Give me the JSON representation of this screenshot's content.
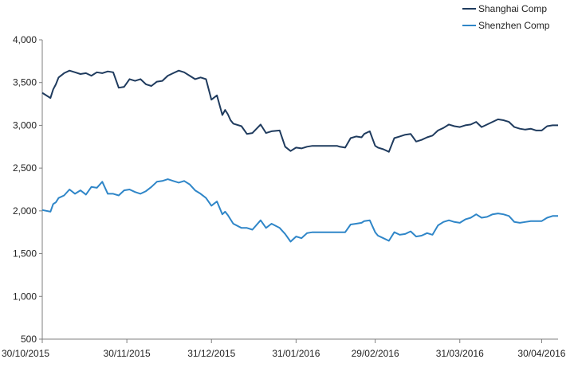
{
  "chart_data": {
    "type": "line",
    "title": "",
    "xlabel": "",
    "ylabel": "",
    "ylim": [
      500,
      4000
    ],
    "yticks": [
      500,
      1000,
      1500,
      2000,
      2500,
      3000,
      3500,
      4000
    ],
    "ytick_labels": [
      "500",
      "1,000",
      "1,500",
      "2,000",
      "2,500",
      "3,000",
      "3,500",
      "4,000"
    ],
    "xlim": [
      "2015-10-30",
      "2016-05-06"
    ],
    "xticks": [
      "2015-10-30",
      "2015-11-30",
      "2015-12-31",
      "2016-01-31",
      "2016-02-29",
      "2016-03-31",
      "2016-04-30"
    ],
    "xtick_labels": [
      "30/10/2015",
      "30/11/2015",
      "31/12/2015",
      "31/01/2016",
      "29/02/2016",
      "31/03/2016",
      "30/04/2016"
    ],
    "grid": false,
    "legend": "top-right",
    "colors": {
      "axis": "#7f7f7f",
      "Shanghai Comp": "#1f3b5e",
      "Shenzhen Comp": "#2f86c8"
    },
    "series": [
      {
        "name": "Shanghai Comp",
        "x": [
          "2015-10-30",
          "2015-11-02",
          "2015-11-03",
          "2015-11-04",
          "2015-11-05",
          "2015-11-07",
          "2015-11-09",
          "2015-11-11",
          "2015-11-13",
          "2015-11-15",
          "2015-11-17",
          "2015-11-19",
          "2015-11-21",
          "2015-11-23",
          "2015-11-25",
          "2015-11-27",
          "2015-11-29",
          "2015-12-01",
          "2015-12-03",
          "2015-12-05",
          "2015-12-07",
          "2015-12-09",
          "2015-12-11",
          "2015-12-13",
          "2015-12-15",
          "2015-12-17",
          "2015-12-19",
          "2015-12-21",
          "2015-12-23",
          "2015-12-25",
          "2015-12-27",
          "2015-12-29",
          "2015-12-31",
          "2016-01-02",
          "2016-01-04",
          "2016-01-05",
          "2016-01-06",
          "2016-01-07",
          "2016-01-08",
          "2016-01-11",
          "2016-01-13",
          "2016-01-15",
          "2016-01-18",
          "2016-01-20",
          "2016-01-22",
          "2016-01-25",
          "2016-01-27",
          "2016-01-29",
          "2016-01-31",
          "2016-02-02",
          "2016-02-04",
          "2016-02-06",
          "2016-02-12",
          "2016-02-15",
          "2016-02-16",
          "2016-02-18",
          "2016-02-20",
          "2016-02-22",
          "2016-02-24",
          "2016-02-25",
          "2016-02-27",
          "2016-02-29",
          "2016-03-01",
          "2016-03-03",
          "2016-03-05",
          "2016-03-07",
          "2016-03-09",
          "2016-03-11",
          "2016-03-13",
          "2016-03-15",
          "2016-03-17",
          "2016-03-19",
          "2016-03-21",
          "2016-03-23",
          "2016-03-25",
          "2016-03-27",
          "2016-03-29",
          "2016-03-31",
          "2016-04-02",
          "2016-04-04",
          "2016-04-06",
          "2016-04-08",
          "2016-04-10",
          "2016-04-12",
          "2016-04-14",
          "2016-04-16",
          "2016-04-18",
          "2016-04-20",
          "2016-04-22",
          "2016-04-24",
          "2016-04-26",
          "2016-04-28",
          "2016-04-30",
          "2016-05-02",
          "2016-05-04",
          "2016-05-06"
        ],
        "values": [
          3380,
          3320,
          3420,
          3480,
          3560,
          3610,
          3640,
          3620,
          3600,
          3610,
          3580,
          3620,
          3610,
          3630,
          3620,
          3440,
          3450,
          3540,
          3520,
          3540,
          3480,
          3460,
          3510,
          3520,
          3580,
          3610,
          3640,
          3620,
          3580,
          3540,
          3560,
          3540,
          3300,
          3350,
          3120,
          3180,
          3130,
          3060,
          3020,
          2990,
          2900,
          2910,
          3010,
          2910,
          2930,
          2940,
          2750,
          2700,
          2740,
          2730,
          2750,
          2760,
          2760,
          2760,
          2750,
          2740,
          2850,
          2870,
          2860,
          2900,
          2930,
          2760,
          2740,
          2720,
          2690,
          2850,
          2870,
          2890,
          2900,
          2810,
          2830,
          2860,
          2880,
          2940,
          2970,
          3010,
          2990,
          2980,
          3000,
          3010,
          3040,
          2980,
          3010,
          3040,
          3070,
          3060,
          3040,
          2980,
          2960,
          2950,
          2960,
          2940,
          2940,
          2990,
          3000,
          3000
        ]
      },
      {
        "name": "Shenzhen Comp",
        "x": [
          "2015-10-30",
          "2015-11-02",
          "2015-11-03",
          "2015-11-04",
          "2015-11-05",
          "2015-11-07",
          "2015-11-09",
          "2015-11-11",
          "2015-11-13",
          "2015-11-15",
          "2015-11-17",
          "2015-11-19",
          "2015-11-21",
          "2015-11-23",
          "2015-11-25",
          "2015-11-27",
          "2015-11-29",
          "2015-12-01",
          "2015-12-03",
          "2015-12-05",
          "2015-12-07",
          "2015-12-09",
          "2015-12-11",
          "2015-12-13",
          "2015-12-15",
          "2015-12-17",
          "2015-12-19",
          "2015-12-21",
          "2015-12-23",
          "2015-12-25",
          "2015-12-27",
          "2015-12-29",
          "2015-12-31",
          "2016-01-02",
          "2016-01-04",
          "2016-01-05",
          "2016-01-06",
          "2016-01-07",
          "2016-01-08",
          "2016-01-11",
          "2016-01-13",
          "2016-01-15",
          "2016-01-18",
          "2016-01-20",
          "2016-01-22",
          "2016-01-25",
          "2016-01-27",
          "2016-01-29",
          "2016-01-31",
          "2016-02-02",
          "2016-02-04",
          "2016-02-06",
          "2016-02-12",
          "2016-02-15",
          "2016-02-16",
          "2016-02-18",
          "2016-02-20",
          "2016-02-22",
          "2016-02-24",
          "2016-02-25",
          "2016-02-27",
          "2016-02-29",
          "2016-03-01",
          "2016-03-03",
          "2016-03-05",
          "2016-03-07",
          "2016-03-09",
          "2016-03-11",
          "2016-03-13",
          "2016-03-15",
          "2016-03-17",
          "2016-03-19",
          "2016-03-21",
          "2016-03-23",
          "2016-03-25",
          "2016-03-27",
          "2016-03-29",
          "2016-03-31",
          "2016-04-02",
          "2016-04-04",
          "2016-04-06",
          "2016-04-08",
          "2016-04-10",
          "2016-04-12",
          "2016-04-14",
          "2016-04-16",
          "2016-04-18",
          "2016-04-20",
          "2016-04-22",
          "2016-04-24",
          "2016-04-26",
          "2016-04-28",
          "2016-04-30",
          "2016-05-02",
          "2016-05-04",
          "2016-05-06"
        ],
        "values": [
          2010,
          1990,
          2080,
          2100,
          2150,
          2180,
          2250,
          2200,
          2240,
          2190,
          2280,
          2270,
          2340,
          2200,
          2200,
          2180,
          2240,
          2250,
          2220,
          2200,
          2230,
          2280,
          2340,
          2350,
          2370,
          2350,
          2330,
          2350,
          2310,
          2240,
          2200,
          2150,
          2060,
          2110,
          1960,
          1990,
          1950,
          1900,
          1850,
          1800,
          1800,
          1780,
          1890,
          1800,
          1850,
          1800,
          1730,
          1640,
          1700,
          1680,
          1740,
          1750,
          1750,
          1750,
          1750,
          1750,
          1840,
          1850,
          1860,
          1880,
          1890,
          1750,
          1710,
          1680,
          1650,
          1750,
          1720,
          1730,
          1760,
          1700,
          1710,
          1740,
          1720,
          1830,
          1870,
          1890,
          1870,
          1860,
          1900,
          1920,
          1960,
          1920,
          1930,
          1960,
          1970,
          1960,
          1940,
          1870,
          1860,
          1870,
          1880,
          1880,
          1880,
          1920,
          1940,
          1940
        ]
      }
    ]
  }
}
